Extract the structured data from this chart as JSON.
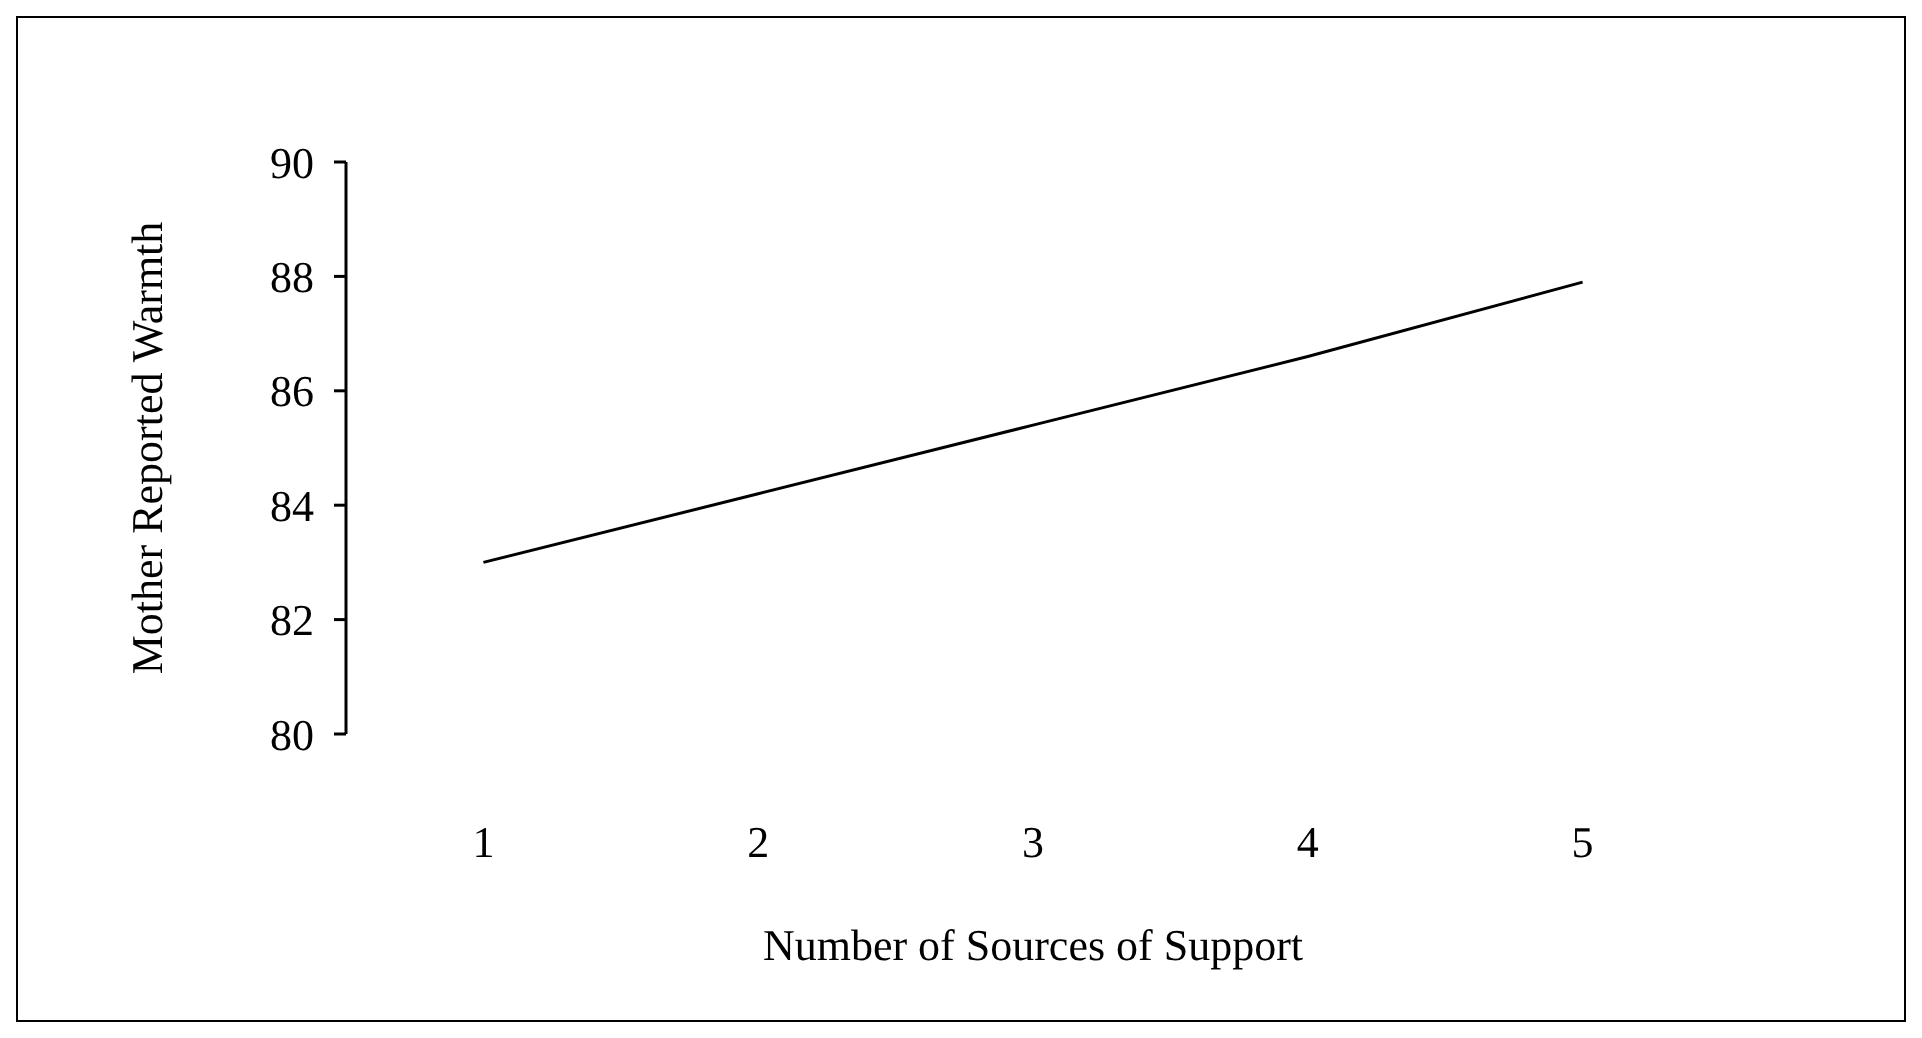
{
  "chart_data": {
    "type": "line",
    "xlabel": "Number of Sources of Support",
    "ylabel": "Mother Reported Warmth",
    "categories": [
      "1",
      "2",
      "3",
      "4",
      "5"
    ],
    "series": [
      {
        "color": "#000000",
        "values": [
          83.0,
          84.2,
          85.4,
          86.6,
          87.9
        ]
      }
    ],
    "ylim": [
      80,
      90
    ],
    "yticks": [
      80,
      82,
      84,
      86,
      88,
      90
    ]
  }
}
